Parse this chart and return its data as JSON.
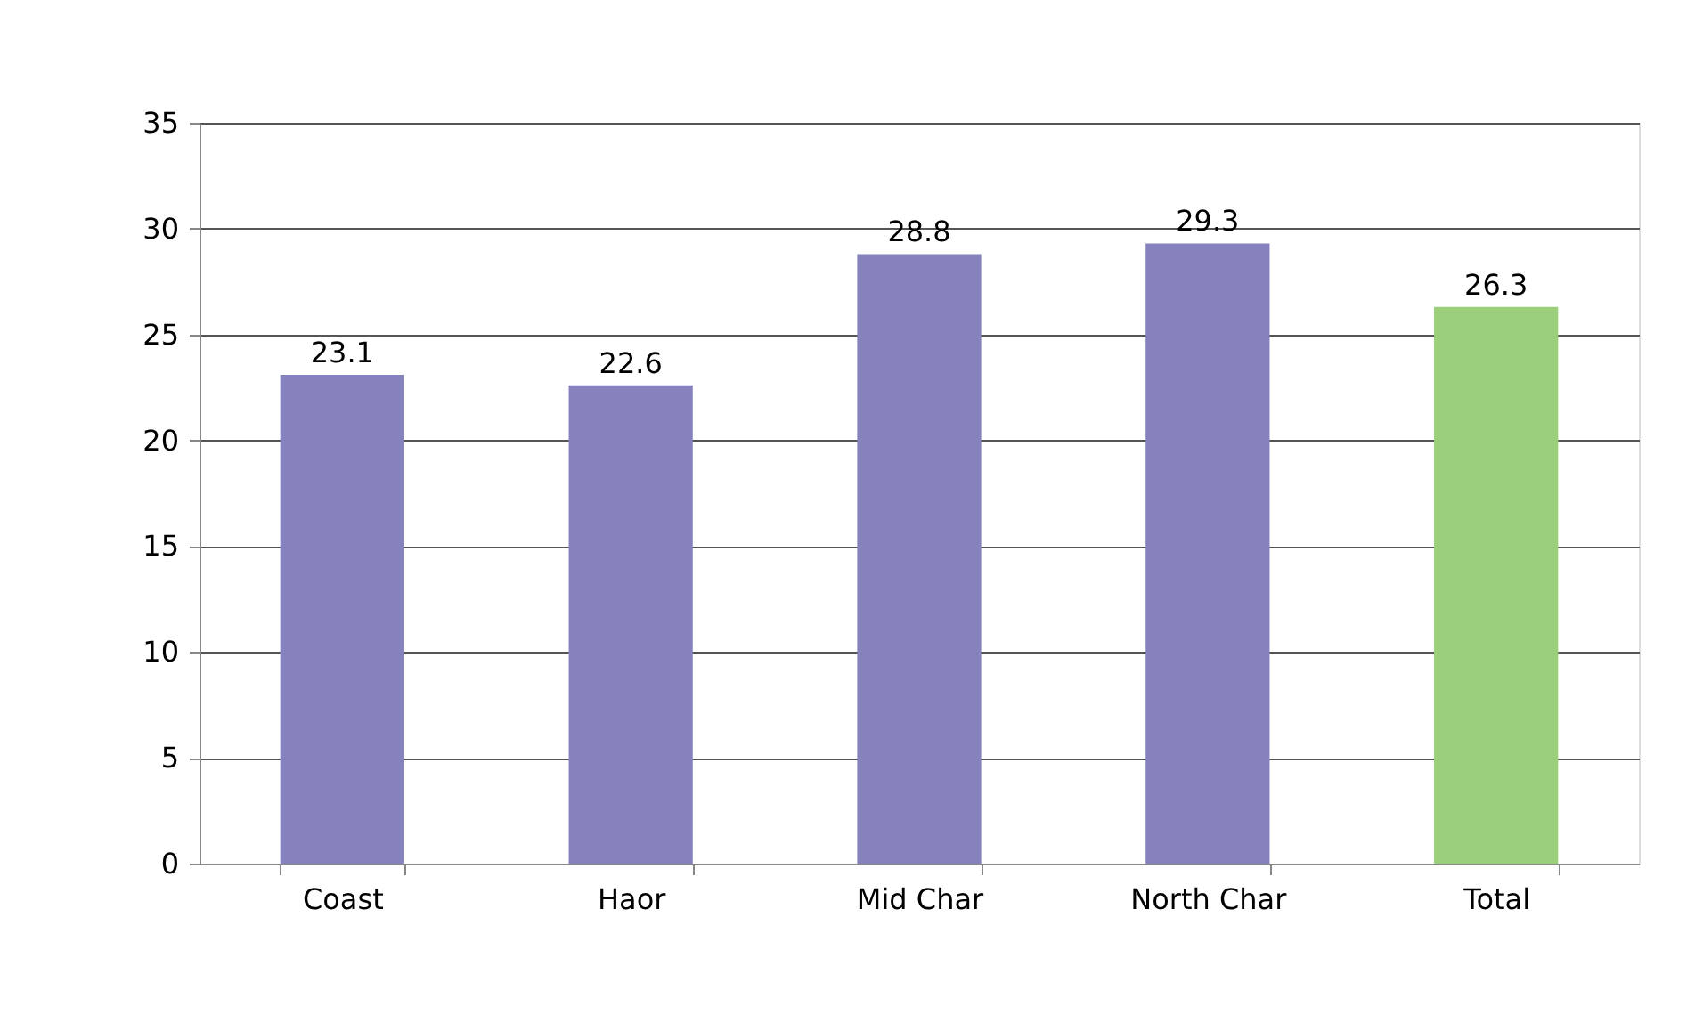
{
  "chart_data": {
    "type": "bar",
    "categories": [
      "Coast",
      "Haor",
      "Mid Char",
      "North Char",
      "Total"
    ],
    "values": [
      23.1,
      22.6,
      28.8,
      29.3,
      26.3
    ],
    "colors": [
      "#8682bd",
      "#8682bd",
      "#8682bd",
      "#8682bd",
      "#9bcf7b"
    ],
    "ylim": [
      0,
      35
    ],
    "yticks": [
      0,
      5,
      10,
      15,
      20,
      25,
      30,
      35
    ],
    "grid": "y",
    "data_labels": true
  }
}
